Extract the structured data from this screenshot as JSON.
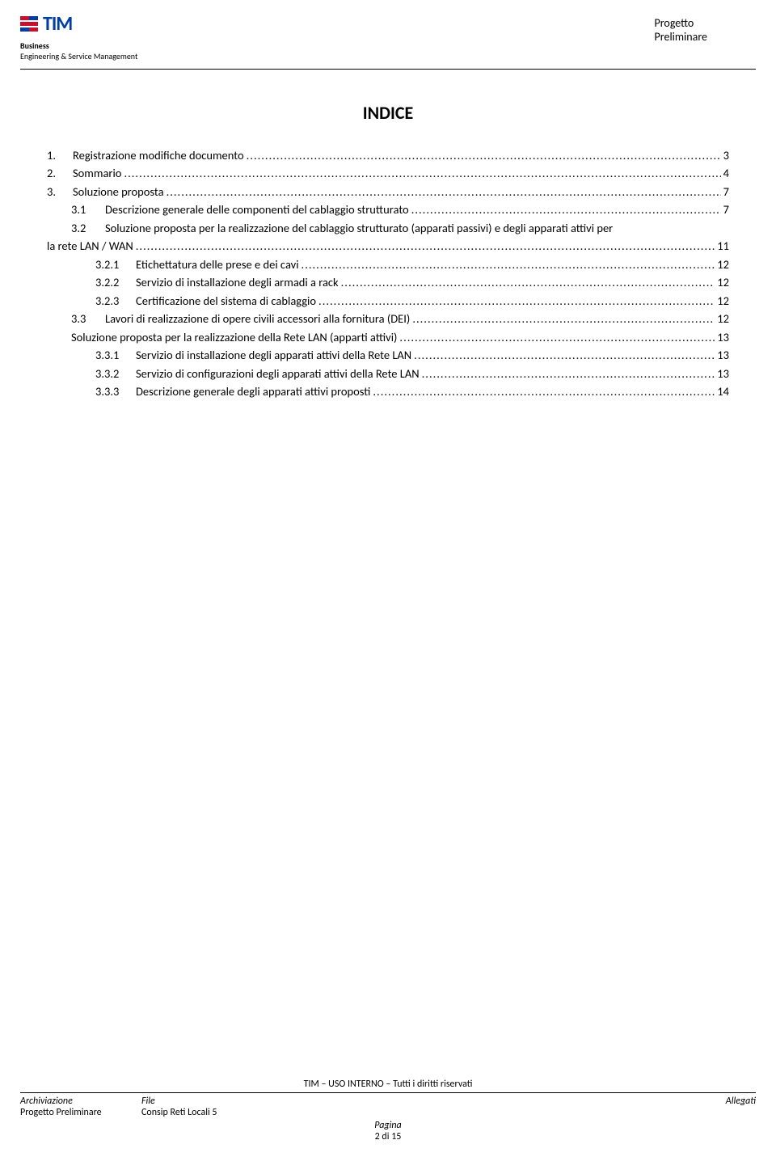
{
  "header": {
    "logo_text": "TIM",
    "business": "Business",
    "engineering": "Engineering & Service Management",
    "right_line1": "Progetto",
    "right_line2": "Preliminare"
  },
  "title": "INDICE",
  "toc": [
    {
      "indent": 0,
      "num": "1.",
      "text": "Registrazione modifiche documento",
      "page": "3"
    },
    {
      "indent": 0,
      "num": "2.",
      "text": "Sommario",
      "page": "4"
    },
    {
      "indent": 0,
      "num": "3.",
      "text": "Soluzione proposta",
      "page": "7"
    },
    {
      "indent": 1,
      "num": "3.1",
      "text": "Descrizione generale delle componenti del cablaggio strutturato",
      "page": "7"
    },
    {
      "indent": 1,
      "num": "3.2",
      "text": "Soluzione proposta per la realizzazione del cablaggio strutturato (apparati passivi) e degli apparati attivi per la rete LAN / WAN",
      "page": "11",
      "wrap": true
    },
    {
      "indent": 2,
      "num": "3.2.1",
      "text": "Etichettatura delle prese e dei cavi",
      "page": "12"
    },
    {
      "indent": 2,
      "num": "3.2.2",
      "text": "Servizio di installazione degli armadi a rack",
      "page": "12"
    },
    {
      "indent": 2,
      "num": "3.2.3",
      "text": "Certificazione del sistema di cablaggio",
      "page": "12"
    },
    {
      "indent": 1,
      "num": "3.3",
      "text": "Lavori di realizzazione di opere civili accessori alla fornitura (DEI)",
      "page": "12"
    },
    {
      "indent": 1,
      "num": "",
      "text": "Soluzione proposta per la realizzazione della Rete LAN (apparti attivi)",
      "page": "13"
    },
    {
      "indent": 2,
      "num": "3.3.1",
      "text": "Servizio di installazione degli apparati attivi della Rete LAN",
      "page": "13"
    },
    {
      "indent": 2,
      "num": "3.3.2",
      "text": "Servizio di configurazioni degli apparati attivi della Rete LAN",
      "page": "13"
    },
    {
      "indent": 2,
      "num": "3.3.3",
      "text": "Descrizione generale degli apparati attivi proposti",
      "page": "14"
    }
  ],
  "footer": {
    "rights": "TIM – USO INTERNO – Tutti i diritti riservati",
    "archiviazione_label": "Archiviazione",
    "file_label": "File",
    "allegati_label": "Allegati",
    "project": "Progetto Preliminare",
    "file_value": "Consip Reti Locali 5",
    "pagina_label": "Pagina",
    "page_num": "2 di 15"
  },
  "colors": {
    "tim_blue": "#003da5",
    "tim_red": "#c8102e",
    "text": "#000000",
    "background": "#ffffff"
  },
  "fonts": {
    "body_size": 14.5,
    "title_size": 22,
    "header_small": 10,
    "footer_size": 12
  }
}
